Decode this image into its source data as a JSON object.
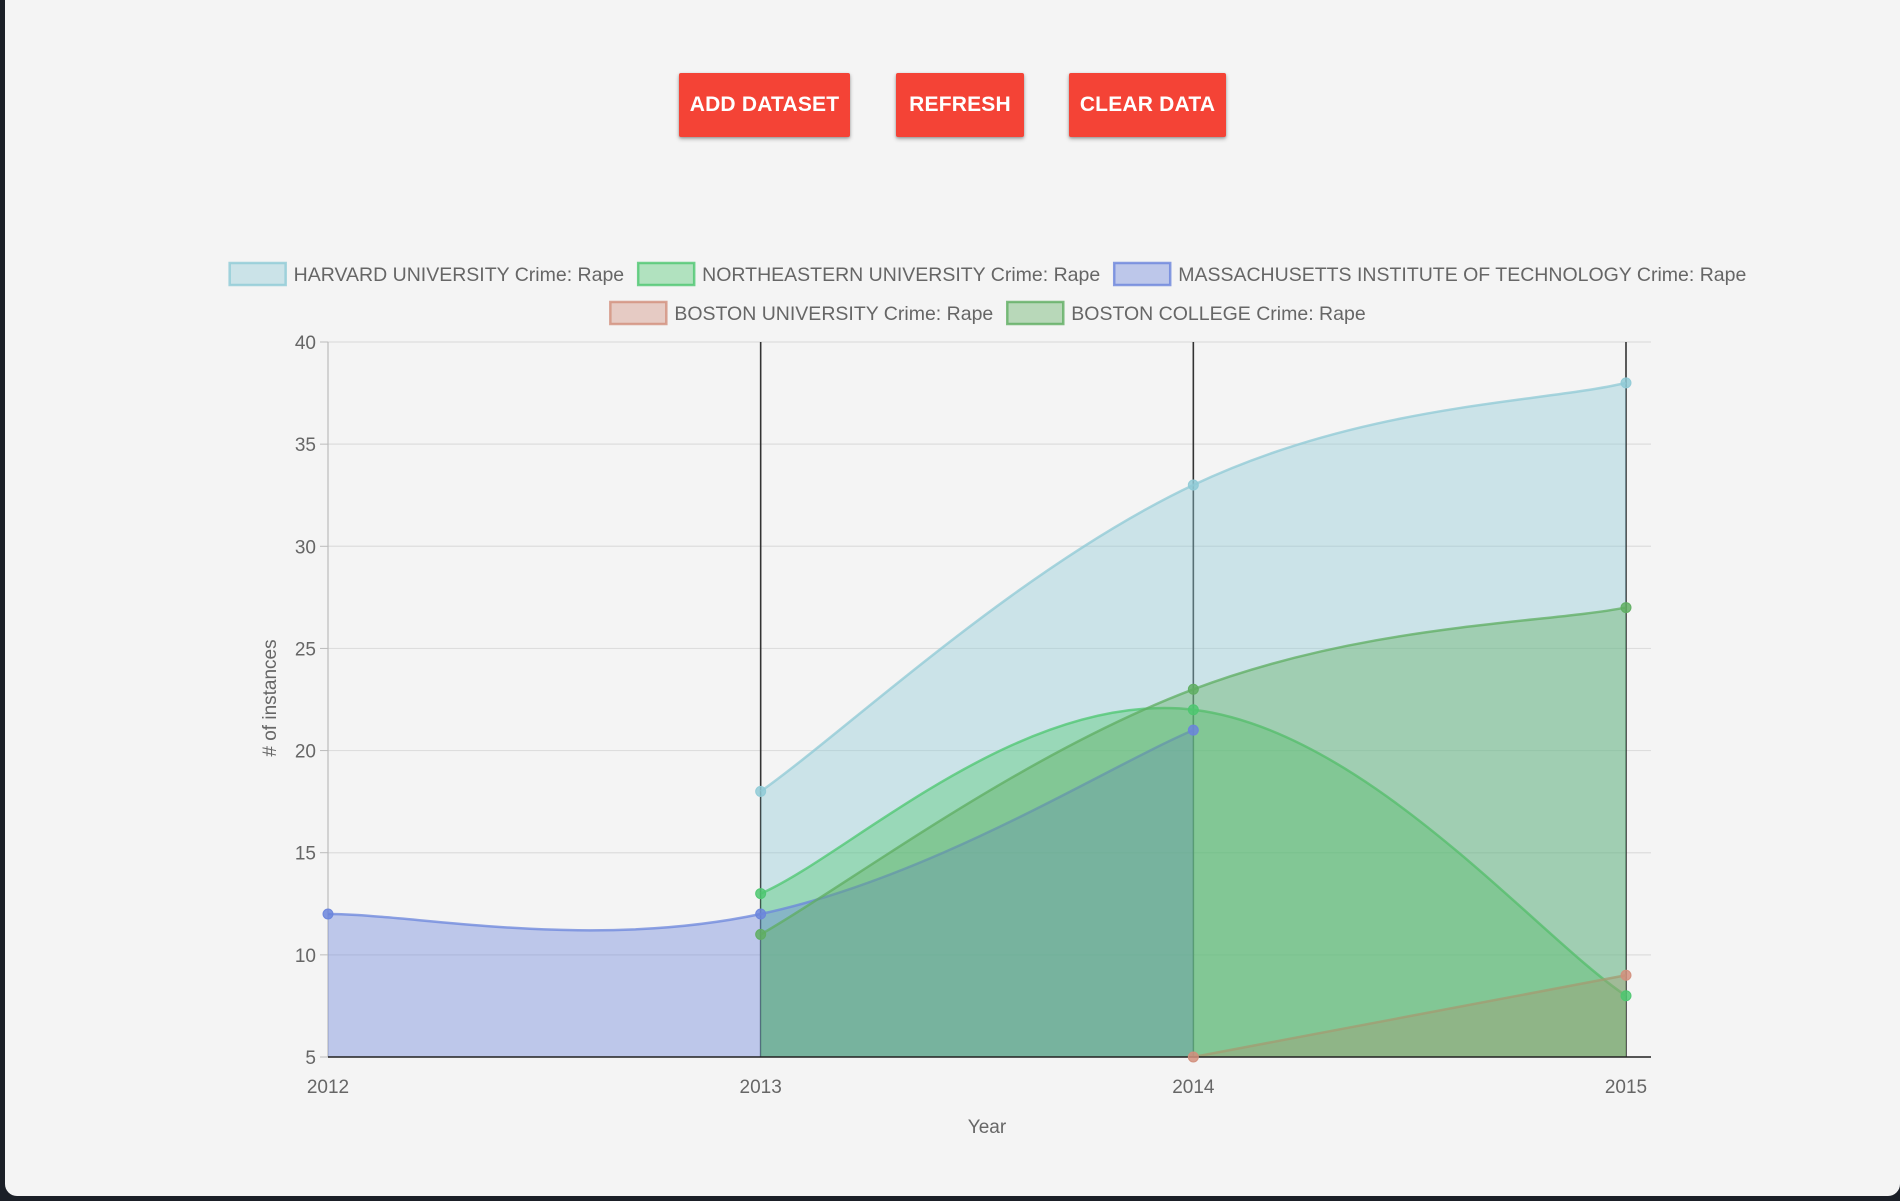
{
  "toolbar": {
    "add_label": "ADD DATASET",
    "refresh_label": "REFRESH",
    "clear_label": "CLEAR DATA",
    "button_color": "#f44336"
  },
  "chart_data": {
    "type": "area",
    "x": [
      2012,
      2013,
      2014,
      2015
    ],
    "xlabel": "Year",
    "ylabel": "# of instances",
    "ylim": [
      5,
      40
    ],
    "yticks": [
      5,
      10,
      15,
      20,
      25,
      30,
      35,
      40
    ],
    "grid": true,
    "legend_position": "top",
    "series": [
      {
        "name": "HARVARD UNIVERSITY Crime: Rape",
        "values": [
          null,
          18,
          33,
          38
        ],
        "color": "#8fcad6"
      },
      {
        "name": "NORTHEASTERN UNIVERSITY Crime: Rape",
        "values": [
          null,
          13,
          22,
          8
        ],
        "color": "#4dc770"
      },
      {
        "name": "MASSACHUSETTS INSTITUTE OF TECHNOLOGY Crime: Rape",
        "values": [
          12,
          12,
          21,
          null
        ],
        "color": "#6b85dc"
      },
      {
        "name": "BOSTON UNIVERSITY Crime: Rape",
        "values": [
          null,
          null,
          5,
          9
        ],
        "color": "#d28f7c"
      },
      {
        "name": "BOSTON COLLEGE Crime: Rape",
        "values": [
          null,
          11,
          23,
          27
        ],
        "color": "#5fae61"
      }
    ]
  }
}
